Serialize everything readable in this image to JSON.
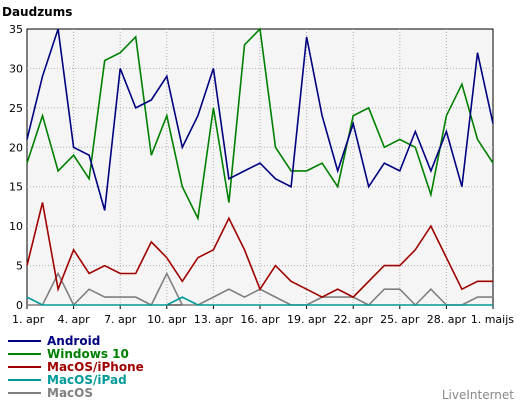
{
  "chart_data": {
    "type": "line",
    "title": "Daudzums",
    "xlabel": "",
    "ylabel": "",
    "ylim": [
      0,
      35
    ],
    "y_ticks": [
      0,
      5,
      10,
      15,
      20,
      25,
      30,
      35
    ],
    "grid": true,
    "legend_position": "bottom-left",
    "x": [
      "1. apr",
      "2. apr",
      "3. apr",
      "4. apr",
      "5. apr",
      "6. apr",
      "7. apr",
      "8. apr",
      "9. apr",
      "10. apr",
      "11. apr",
      "12. apr",
      "13. apr",
      "14. apr",
      "15. apr",
      "16. apr",
      "17. apr",
      "18. apr",
      "19. apr",
      "20. apr",
      "21. apr",
      "22. apr",
      "23. apr",
      "24. apr",
      "25. apr",
      "26. apr",
      "27. apr",
      "28. apr",
      "29. apr",
      "30. apr",
      "1. maijs"
    ],
    "x_tick_labels": [
      "1. apr",
      "4. apr",
      "7. apr",
      "10. apr",
      "13. apr",
      "16. apr",
      "19. apr",
      "22. apr",
      "25. apr",
      "28. apr",
      "1. maijs"
    ],
    "series": [
      {
        "name": "Android",
        "color": "#000080",
        "values": [
          21,
          29,
          35,
          20,
          19,
          12,
          30,
          25,
          26,
          29,
          20,
          24,
          30,
          16,
          17,
          18,
          16,
          15,
          34,
          24,
          17,
          23,
          15,
          18,
          17,
          22,
          17,
          22,
          15,
          32,
          23
        ]
      },
      {
        "name": "Windows 10",
        "color": "#008000",
        "values": [
          18,
          24,
          17,
          19,
          16,
          31,
          32,
          34,
          19,
          24,
          15,
          11,
          25,
          13,
          33,
          35,
          20,
          17,
          17,
          18,
          15,
          24,
          25,
          20,
          21,
          20,
          14,
          24,
          28,
          21,
          18
        ]
      },
      {
        "name": "MacOS/iPhone",
        "color": "#a00000",
        "values": [
          5,
          13,
          2,
          7,
          4,
          5,
          4,
          4,
          8,
          6,
          3,
          6,
          7,
          11,
          7,
          2,
          5,
          3,
          2,
          1,
          2,
          1,
          3,
          5,
          5,
          7,
          10,
          6,
          2,
          3,
          3
        ]
      },
      {
        "name": "MacOS/iPad",
        "color": "#009999",
        "values": [
          1,
          0,
          0,
          0,
          0,
          0,
          0,
          0,
          0,
          0,
          1,
          0,
          0,
          0,
          0,
          0,
          0,
          0,
          0,
          0,
          0,
          0,
          0,
          0,
          0,
          0,
          0,
          0,
          0,
          0,
          0
        ]
      },
      {
        "name": "MacOS",
        "color": "#808080",
        "values": [
          0,
          0,
          4,
          0,
          2,
          1,
          1,
          1,
          0,
          4,
          0,
          0,
          1,
          2,
          1,
          2,
          1,
          0,
          0,
          1,
          1,
          1,
          0,
          2,
          2,
          0,
          2,
          0,
          0,
          1,
          1
        ]
      }
    ]
  },
  "credit": "LiveInternet"
}
